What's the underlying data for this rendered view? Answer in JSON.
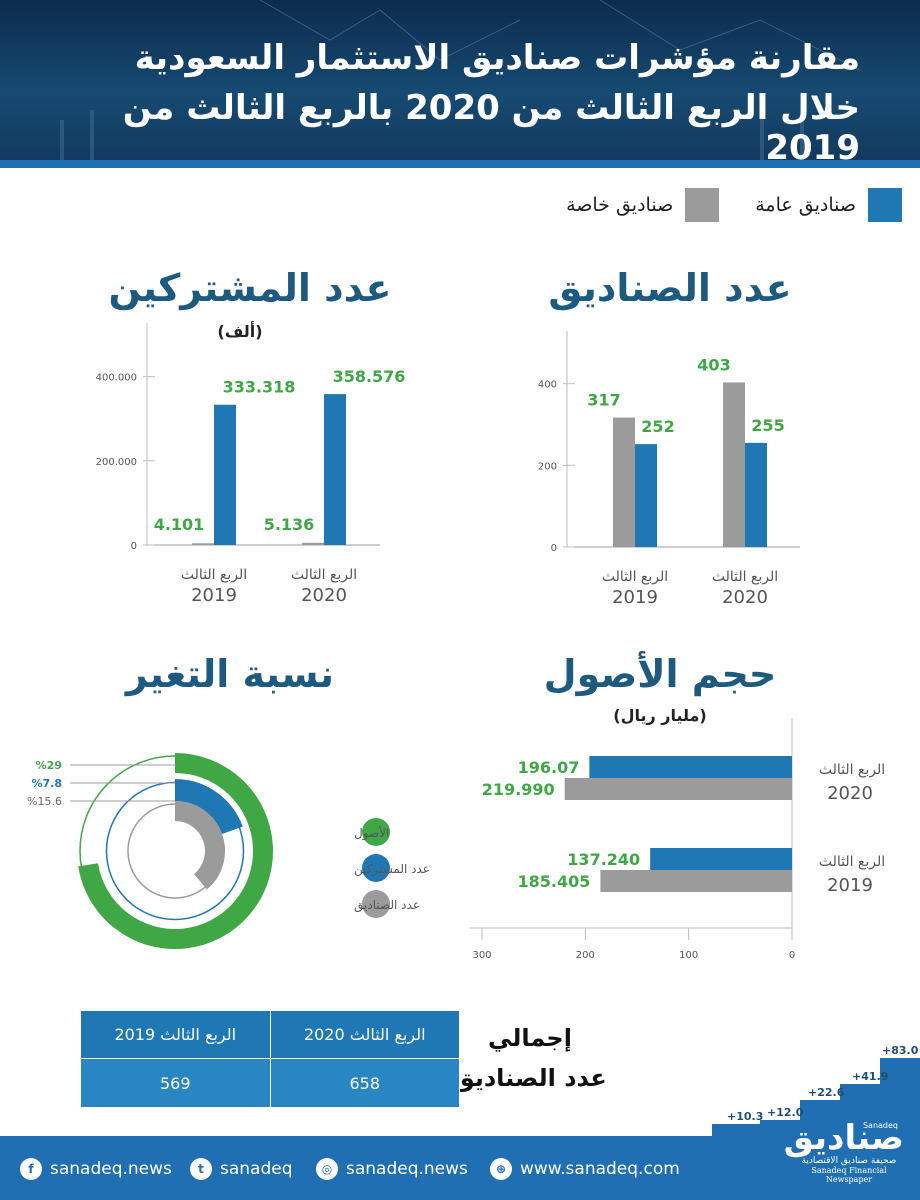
{
  "header": {
    "title_line1": "مقارنة مؤشرات صناديق الاستثمار السعودية",
    "title_line2": "خلال الربع الثالث من 2020 بالربع الثالث من 2019"
  },
  "colors": {
    "public": "#1f78b4",
    "private": "#9b9b9b",
    "green": "#3fa844",
    "title": "#1d5a80"
  },
  "legend": [
    {
      "label": "صناديق عامة",
      "color": "#1f78b4"
    },
    {
      "label": "صناديق خاصة",
      "color": "#9b9b9b"
    }
  ],
  "chart_data": [
    {
      "id": "funds",
      "type": "bar",
      "title": "عدد الصناديق",
      "categories": [
        "الربع الثالث 2019",
        "الربع الثالث 2020"
      ],
      "category_line1": [
        "الربع الثالث",
        "الربع الثالث"
      ],
      "category_line2": [
        "2019",
        "2020"
      ],
      "series": [
        {
          "name": "صناديق خاصة",
          "values": [
            317,
            403
          ],
          "labels": [
            "317",
            "403"
          ]
        },
        {
          "name": "صناديق عامة",
          "values": [
            252,
            255
          ],
          "labels": [
            "252",
            "255"
          ]
        }
      ],
      "yticks": [
        0,
        200,
        400
      ],
      "ytick_labels": [
        "0",
        "200",
        "400"
      ],
      "ylim": [
        0,
        480
      ]
    },
    {
      "id": "subscribers",
      "type": "bar",
      "title": "عدد المشتركين",
      "unit": "(ألف)",
      "categories": [
        "الربع الثالث 2019",
        "الربع الثالث 2020"
      ],
      "category_line1": [
        "الربع الثالث",
        "الربع الثالث"
      ],
      "category_line2": [
        "2019",
        "2020"
      ],
      "series": [
        {
          "name": "صناديق خاصة",
          "values": [
            4101,
            5136
          ],
          "labels": [
            "4.101",
            "5.136"
          ]
        },
        {
          "name": "صناديق عامة",
          "values": [
            333318,
            358576
          ],
          "labels": [
            "333.318",
            "358.576"
          ]
        }
      ],
      "yticks": [
        0,
        200000,
        400000
      ],
      "ytick_labels": [
        "0",
        "200.000",
        "400.000"
      ],
      "ylim": [
        0,
        480000
      ]
    },
    {
      "id": "assets",
      "type": "bar",
      "orientation": "horizontal",
      "title": "حجم الأصول",
      "unit": "(مليار ريال)",
      "categories": [
        "الربع الثالث 2020",
        "الربع الثالث 2019"
      ],
      "category_line1": [
        "الربع الثالث",
        "الربع الثالث"
      ],
      "category_line2": [
        "2020",
        "2019"
      ],
      "series": [
        {
          "name": "صناديق عامة",
          "values": [
            196.07,
            137.24
          ],
          "labels": [
            "196.07",
            "137.240"
          ]
        },
        {
          "name": "صناديق خاصة",
          "values": [
            219.99,
            185.405
          ],
          "labels": [
            "219.990",
            "185.405"
          ]
        }
      ],
      "xticks": [
        0,
        100,
        200,
        300
      ],
      "xtick_labels": [
        "0",
        "100",
        "200",
        "300"
      ],
      "xlim": [
        0,
        300
      ]
    },
    {
      "id": "change",
      "type": "radial-bar",
      "title": "نسبة التغير",
      "items": [
        {
          "name": "الأصول",
          "value": 29,
          "label": "%29",
          "color": "#3fa844"
        },
        {
          "name": "عدد المشتركين",
          "value": 7.8,
          "label": "%7.8",
          "color": "#1f78b4"
        },
        {
          "name": "عدد الصناديق",
          "value": 15.6,
          "label": "%15.6",
          "color": "#9b9b9b"
        }
      ]
    }
  ],
  "totals": {
    "title_line1": "إجمالي",
    "title_line2": "عدد الصناديق",
    "headers": [
      "الربع الثالث 2019",
      "الربع الثالث 2020"
    ],
    "values": [
      "569",
      "658"
    ]
  },
  "footer": {
    "facebook": "sanadeq.news",
    "twitter": "sanadeq",
    "instagram": "sanadeq.news",
    "website": "www.sanadeq.com",
    "brand_ar": "صناديق",
    "brand_en": "Sanadeq",
    "brand_sub_ar": "صحيفة صناديق الاقتصادية",
    "brand_sub_en": "Sanadeq Financial Newspaper",
    "steps": [
      "+10.3",
      "+12.0",
      "+22.6",
      "+41.9",
      "+83.0"
    ]
  }
}
